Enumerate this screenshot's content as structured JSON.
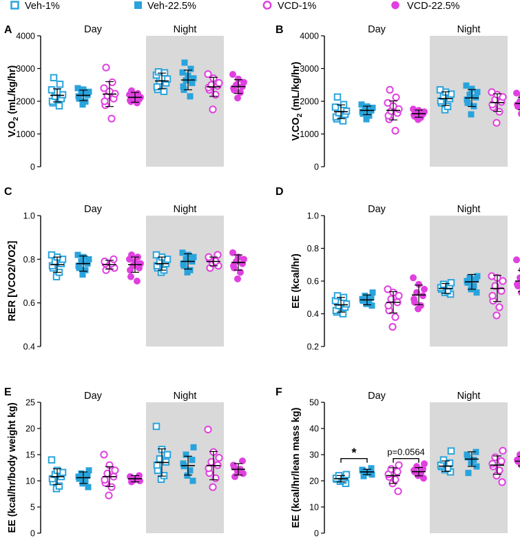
{
  "legend": [
    {
      "label": "Veh-1%",
      "color": "#29a3dc",
      "marker": "square-open"
    },
    {
      "label": "Veh-22.5%",
      "color": "#29a3dc",
      "marker": "square-filled"
    },
    {
      "label": "VCD-1%",
      "color": "#e040e0",
      "marker": "circle-open"
    },
    {
      "label": "VCD-22.5%",
      "color": "#e040e0",
      "marker": "circle-filled"
    }
  ],
  "colors": {
    "veh": "#29a3dc",
    "vcd": "#e040e0",
    "night_shade": "#d9d9d9"
  },
  "phase_labels": {
    "day": "Day",
    "night": "Night"
  },
  "chart_data": [
    {
      "panel": "A",
      "type": "scatter",
      "ylabel": "V.O2 (mL/kg/hr)",
      "ylim": [
        0,
        4000
      ],
      "yticks": [
        0,
        1000,
        2000,
        3000,
        4000
      ],
      "groups": [
        {
          "phase": "Day",
          "series": "Veh-1%",
          "mean": 2180,
          "sd": 200,
          "points": [
            1860,
            1950,
            2000,
            2080,
            2150,
            2200,
            2280,
            2350,
            2520,
            2720
          ]
        },
        {
          "phase": "Day",
          "series": "Veh-22.5%",
          "mean": 2180,
          "sd": 160,
          "points": [
            1900,
            1990,
            2080,
            2150,
            2190,
            2240,
            2290,
            2360,
            2400
          ]
        },
        {
          "phase": "Day",
          "series": "VCD-1%",
          "mean": 2220,
          "sd": 380,
          "points": [
            1470,
            1880,
            2000,
            2080,
            2170,
            2230,
            2300,
            2400,
            2580,
            3030
          ]
        },
        {
          "phase": "Day",
          "series": "VCD-22.5%",
          "mean": 2120,
          "sd": 150,
          "points": [
            1950,
            1990,
            2030,
            2060,
            2090,
            2120,
            2160,
            2200,
            2240,
            2320
          ]
        },
        {
          "phase": "Night",
          "series": "Veh-1%",
          "mean": 2620,
          "sd": 240,
          "points": [
            2300,
            2360,
            2440,
            2560,
            2620,
            2680,
            2720,
            2800,
            2870,
            2900
          ]
        },
        {
          "phase": "Night",
          "series": "Veh-22.5%",
          "mean": 2650,
          "sd": 300,
          "points": [
            2150,
            2350,
            2450,
            2560,
            2640,
            2700,
            2780,
            2880,
            2990,
            3180
          ]
        },
        {
          "phase": "Night",
          "series": "VCD-1%",
          "mean": 2440,
          "sd": 290,
          "points": [
            1750,
            2200,
            2350,
            2420,
            2470,
            2500,
            2560,
            2700,
            2830
          ]
        },
        {
          "phase": "Night",
          "series": "VCD-22.5%",
          "mean": 2450,
          "sd": 210,
          "points": [
            2100,
            2270,
            2340,
            2400,
            2450,
            2500,
            2580,
            2680,
            2820
          ]
        }
      ]
    },
    {
      "panel": "B",
      "type": "scatter",
      "ylabel": "V.CO2 (mL/kg/hr)",
      "ylim": [
        0,
        4000
      ],
      "yticks": [
        0,
        1000,
        2000,
        3000,
        4000
      ],
      "groups": [
        {
          "phase": "Day",
          "series": "Veh-1%",
          "mean": 1680,
          "sd": 210,
          "points": [
            1400,
            1460,
            1520,
            1600,
            1650,
            1700,
            1780,
            1820,
            1900,
            2130
          ]
        },
        {
          "phase": "Day",
          "series": "Veh-22.5%",
          "mean": 1720,
          "sd": 130,
          "points": [
            1450,
            1560,
            1620,
            1680,
            1720,
            1760,
            1800,
            1840,
            1900
          ]
        },
        {
          "phase": "Day",
          "series": "VCD-1%",
          "mean": 1720,
          "sd": 290,
          "points": [
            1100,
            1450,
            1560,
            1640,
            1700,
            1760,
            1850,
            1950,
            2120,
            2350
          ]
        },
        {
          "phase": "Day",
          "series": "VCD-22.5%",
          "mean": 1620,
          "sd": 110,
          "points": [
            1440,
            1500,
            1540,
            1580,
            1610,
            1640,
            1680,
            1720,
            1760
          ]
        },
        {
          "phase": "Night",
          "series": "Veh-1%",
          "mean": 2080,
          "sd": 210,
          "points": [
            1740,
            1840,
            1950,
            2010,
            2080,
            2150,
            2220,
            2280,
            2350
          ]
        },
        {
          "phase": "Night",
          "series": "Veh-22.5%",
          "mean": 2100,
          "sd": 260,
          "points": [
            1600,
            1850,
            1950,
            2050,
            2120,
            2200,
            2280,
            2380,
            2480
          ]
        },
        {
          "phase": "Night",
          "series": "VCD-1%",
          "mean": 1960,
          "sd": 270,
          "points": [
            1340,
            1680,
            1820,
            1900,
            1980,
            2050,
            2130,
            2200,
            2280
          ]
        },
        {
          "phase": "Night",
          "series": "VCD-22.5%",
          "mean": 1930,
          "sd": 190,
          "points": [
            1620,
            1760,
            1840,
            1900,
            1960,
            2000,
            2080,
            2160,
            2250
          ]
        }
      ]
    },
    {
      "panel": "C",
      "type": "scatter",
      "ylabel": "RER [VCO2/VO2]",
      "ylim": [
        0.4,
        1.0
      ],
      "yticks": [
        0.4,
        0.6,
        0.8,
        1.0
      ],
      "groups": [
        {
          "phase": "Day",
          "series": "Veh-1%",
          "mean": 0.775,
          "sd": 0.035,
          "points": [
            0.72,
            0.74,
            0.76,
            0.77,
            0.78,
            0.79,
            0.8,
            0.81,
            0.82
          ]
        },
        {
          "phase": "Day",
          "series": "Veh-22.5%",
          "mean": 0.78,
          "sd": 0.035,
          "points": [
            0.73,
            0.75,
            0.76,
            0.77,
            0.78,
            0.79,
            0.8,
            0.81,
            0.82
          ]
        },
        {
          "phase": "Day",
          "series": "VCD-1%",
          "mean": 0.775,
          "sd": 0.02,
          "points": [
            0.75,
            0.76,
            0.77,
            0.78,
            0.78,
            0.79,
            0.8
          ]
        },
        {
          "phase": "Day",
          "series": "VCD-22.5%",
          "mean": 0.775,
          "sd": 0.035,
          "points": [
            0.7,
            0.72,
            0.75,
            0.76,
            0.77,
            0.78,
            0.79,
            0.8,
            0.81,
            0.82
          ]
        },
        {
          "phase": "Night",
          "series": "Veh-1%",
          "mean": 0.78,
          "sd": 0.03,
          "points": [
            0.74,
            0.75,
            0.76,
            0.77,
            0.78,
            0.79,
            0.8,
            0.81,
            0.82
          ]
        },
        {
          "phase": "Night",
          "series": "Veh-22.5%",
          "mean": 0.79,
          "sd": 0.035,
          "points": [
            0.74,
            0.75,
            0.77,
            0.78,
            0.79,
            0.8,
            0.81,
            0.82,
            0.83
          ]
        },
        {
          "phase": "Night",
          "series": "VCD-1%",
          "mean": 0.79,
          "sd": 0.02,
          "points": [
            0.76,
            0.77,
            0.78,
            0.79,
            0.8,
            0.81,
            0.82
          ]
        },
        {
          "phase": "Night",
          "series": "VCD-22.5%",
          "mean": 0.785,
          "sd": 0.035,
          "points": [
            0.71,
            0.74,
            0.76,
            0.77,
            0.78,
            0.79,
            0.8,
            0.81,
            0.83
          ]
        }
      ]
    },
    {
      "panel": "D",
      "type": "scatter",
      "ylabel": "EE (kcal/hr)",
      "ylim": [
        0.2,
        1.0
      ],
      "yticks": [
        0.2,
        0.4,
        0.6,
        0.8,
        1.0
      ],
      "groups": [
        {
          "phase": "Day",
          "series": "Veh-1%",
          "mean": 0.455,
          "sd": 0.045,
          "points": [
            0.4,
            0.41,
            0.42,
            0.44,
            0.45,
            0.46,
            0.47,
            0.48,
            0.5,
            0.51
          ]
        },
        {
          "phase": "Day",
          "series": "Veh-22.5%",
          "mean": 0.485,
          "sd": 0.03,
          "points": [
            0.45,
            0.46,
            0.47,
            0.48,
            0.49,
            0.5,
            0.51,
            0.53
          ]
        },
        {
          "phase": "Day",
          "series": "VCD-1%",
          "mean": 0.47,
          "sd": 0.065,
          "points": [
            0.32,
            0.38,
            0.42,
            0.45,
            0.47,
            0.49,
            0.51,
            0.53,
            0.55
          ]
        },
        {
          "phase": "Day",
          "series": "VCD-22.5%",
          "mean": 0.515,
          "sd": 0.06,
          "points": [
            0.43,
            0.45,
            0.47,
            0.49,
            0.51,
            0.53,
            0.55,
            0.58,
            0.62
          ]
        },
        {
          "phase": "Night",
          "series": "Veh-1%",
          "mean": 0.555,
          "sd": 0.03,
          "points": [
            0.52,
            0.53,
            0.54,
            0.55,
            0.56,
            0.57,
            0.58,
            0.59
          ]
        },
        {
          "phase": "Night",
          "series": "Veh-22.5%",
          "mean": 0.595,
          "sd": 0.045,
          "points": [
            0.53,
            0.55,
            0.57,
            0.59,
            0.6,
            0.61,
            0.62,
            0.63
          ]
        },
        {
          "phase": "Night",
          "series": "VCD-1%",
          "mean": 0.555,
          "sd": 0.08,
          "points": [
            0.39,
            0.44,
            0.48,
            0.51,
            0.54,
            0.57,
            0.6,
            0.62,
            0.63
          ]
        },
        {
          "phase": "Night",
          "series": "VCD-22.5%",
          "mean": 0.6,
          "sd": 0.065,
          "points": [
            0.53,
            0.55,
            0.57,
            0.58,
            0.6,
            0.62,
            0.65,
            0.67,
            0.73
          ]
        }
      ]
    },
    {
      "panel": "E",
      "type": "scatter",
      "ylabel": "EE (kcal/hr/body weight kg)",
      "ylim": [
        0,
        25
      ],
      "yticks": [
        0,
        5,
        10,
        15,
        20,
        25
      ],
      "groups": [
        {
          "phase": "Day",
          "series": "Veh-1%",
          "mean": 10.8,
          "sd": 1.5,
          "points": [
            8.5,
            9.0,
            9.8,
            10.4,
            10.8,
            11.2,
            11.6,
            12.0,
            14.0
          ]
        },
        {
          "phase": "Day",
          "series": "Veh-22.5%",
          "mean": 10.6,
          "sd": 1.1,
          "points": [
            8.8,
            9.5,
            10.0,
            10.4,
            10.8,
            11.0,
            11.4,
            12.0
          ]
        },
        {
          "phase": "Day",
          "series": "VCD-1%",
          "mean": 10.8,
          "sd": 1.9,
          "points": [
            7.2,
            8.8,
            9.6,
            10.2,
            10.8,
            11.4,
            12.0,
            13.0,
            15.0
          ]
        },
        {
          "phase": "Day",
          "series": "VCD-22.5%",
          "mean": 10.4,
          "sd": 0.6,
          "points": [
            9.8,
            10.0,
            10.2,
            10.4,
            10.6,
            10.8,
            11.0
          ]
        },
        {
          "phase": "Night",
          "series": "Veh-1%",
          "mean": 13.5,
          "sd": 2.6,
          "points": [
            10.3,
            11.0,
            12.0,
            13.0,
            13.6,
            14.2,
            15.0,
            16.0,
            20.4
          ]
        },
        {
          "phase": "Night",
          "series": "Veh-22.5%",
          "mean": 12.9,
          "sd": 1.8,
          "points": [
            10.0,
            11.0,
            12.0,
            12.8,
            13.3,
            14.0,
            15.0,
            16.4
          ]
        },
        {
          "phase": "Night",
          "series": "VCD-1%",
          "mean": 12.9,
          "sd": 2.7,
          "points": [
            8.8,
            10.5,
            11.5,
            12.4,
            13.0,
            13.6,
            14.4,
            15.5,
            19.8
          ]
        },
        {
          "phase": "Night",
          "series": "VCD-22.5%",
          "mean": 12.2,
          "sd": 1.1,
          "points": [
            10.8,
            11.4,
            11.8,
            12.2,
            12.6,
            13.0,
            13.8
          ]
        }
      ]
    },
    {
      "panel": "F",
      "type": "scatter",
      "ylabel": "EE (kcal/hr/lean mass kg)",
      "ylim": [
        0,
        50
      ],
      "yticks": [
        0,
        10,
        20,
        30,
        40,
        50
      ],
      "groups": [
        {
          "phase": "Day",
          "series": "Veh-1%",
          "mean": 20.8,
          "sd": 1.2,
          "points": [
            19.0,
            19.8,
            20.2,
            20.6,
            21.0,
            21.4,
            22.0,
            22.4
          ]
        },
        {
          "phase": "Day",
          "series": "Veh-22.5%",
          "mean": 23.4,
          "sd": 1.0,
          "points": [
            21.8,
            22.4,
            23.0,
            23.4,
            23.8,
            24.2,
            24.8
          ]
        },
        {
          "phase": "Day",
          "series": "VCD-1%",
          "mean": 22.0,
          "sd": 3.0,
          "points": [
            16.0,
            19.0,
            20.5,
            21.5,
            22.5,
            23.5,
            24.5,
            26.0
          ]
        },
        {
          "phase": "Day",
          "series": "VCD-22.5%",
          "mean": 23.5,
          "sd": 1.6,
          "points": [
            21.0,
            22.0,
            22.8,
            23.4,
            24.0,
            24.6,
            25.5,
            26.5
          ]
        },
        {
          "phase": "Night",
          "series": "Veh-1%",
          "mean": 25.6,
          "sd": 2.0,
          "points": [
            23.4,
            24.2,
            24.8,
            25.4,
            26.0,
            26.8,
            28.0,
            31.4
          ]
        },
        {
          "phase": "Night",
          "series": "Veh-22.5%",
          "mean": 28.3,
          "sd": 2.8,
          "points": [
            23.0,
            25.5,
            27.0,
            28.0,
            29.0,
            30.0,
            31.0
          ]
        },
        {
          "phase": "Night",
          "series": "VCD-1%",
          "mean": 26.0,
          "sd": 3.5,
          "points": [
            19.5,
            22.0,
            24.0,
            25.5,
            26.5,
            27.5,
            29.0,
            31.5
          ]
        },
        {
          "phase": "Night",
          "series": "VCD-22.5%",
          "mean": 27.5,
          "sd": 1.8,
          "points": [
            25.0,
            26.0,
            26.8,
            27.4,
            28.0,
            28.8,
            30.0,
            32.0
          ]
        }
      ],
      "annotations": [
        {
          "text": "*",
          "between": [
            "Veh-1%",
            "Veh-22.5%"
          ],
          "phase": "Day",
          "level": 28.5
        },
        {
          "text": "p=0.0564",
          "between": [
            "VCD-1%",
            "VCD-22.5%"
          ],
          "phase": "Day",
          "level": 28.5
        }
      ]
    }
  ]
}
